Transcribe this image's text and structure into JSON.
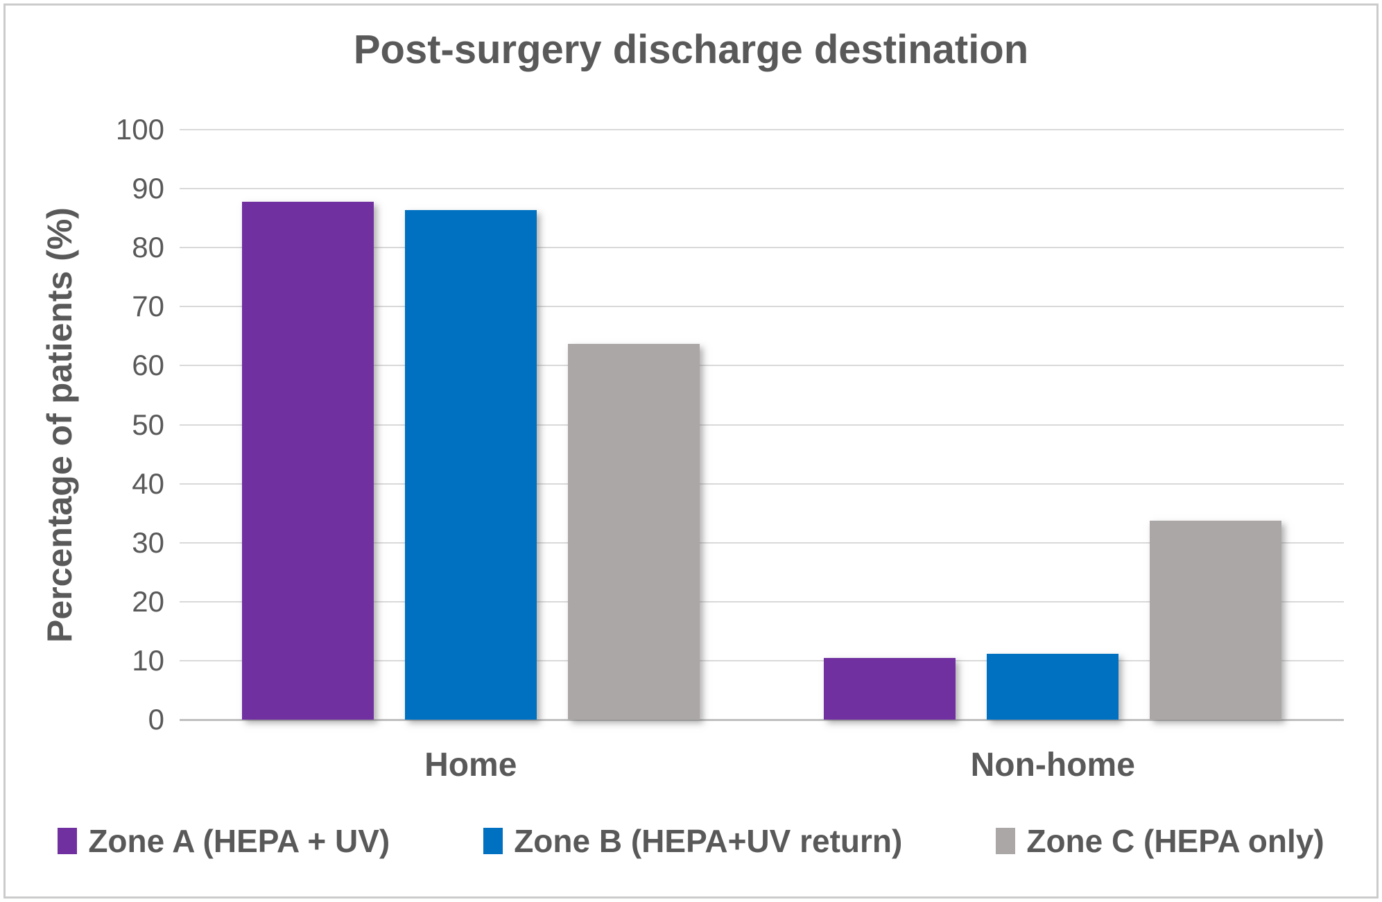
{
  "title": "Post-surgery discharge destination",
  "colors": {
    "text": "#595959",
    "gridline": "#d9d9d9",
    "axis_line": "#bfbfbf",
    "border": "#cbcbcb",
    "zone_a": "#7030a0",
    "zone_b": "#0070c0",
    "zone_c": "#aba7a6"
  },
  "chart_data": {
    "type": "bar",
    "title": "Post-surgery discharge destination",
    "xlabel": "",
    "ylabel": "Percentage of patients (%)",
    "categories": [
      "Home",
      "Non-home"
    ],
    "series": [
      {
        "name": "Zone A (HEPA + UV)",
        "color": "#7030a0",
        "values": [
          87.8,
          10.5
        ]
      },
      {
        "name": "Zone B (HEPA+UV return)",
        "color": "#0070c0",
        "values": [
          86.4,
          11.2
        ]
      },
      {
        "name": "Zone C (HEPA only)",
        "color": "#aba7a6",
        "values": [
          63.7,
          33.7
        ]
      }
    ],
    "ylim": [
      0,
      100
    ],
    "ytick_step": 10,
    "ytick_labels": [
      "0",
      "10",
      "20",
      "30",
      "40",
      "50",
      "60",
      "70",
      "80",
      "90",
      "100"
    ],
    "grid": true,
    "legend_position": "bottom"
  }
}
